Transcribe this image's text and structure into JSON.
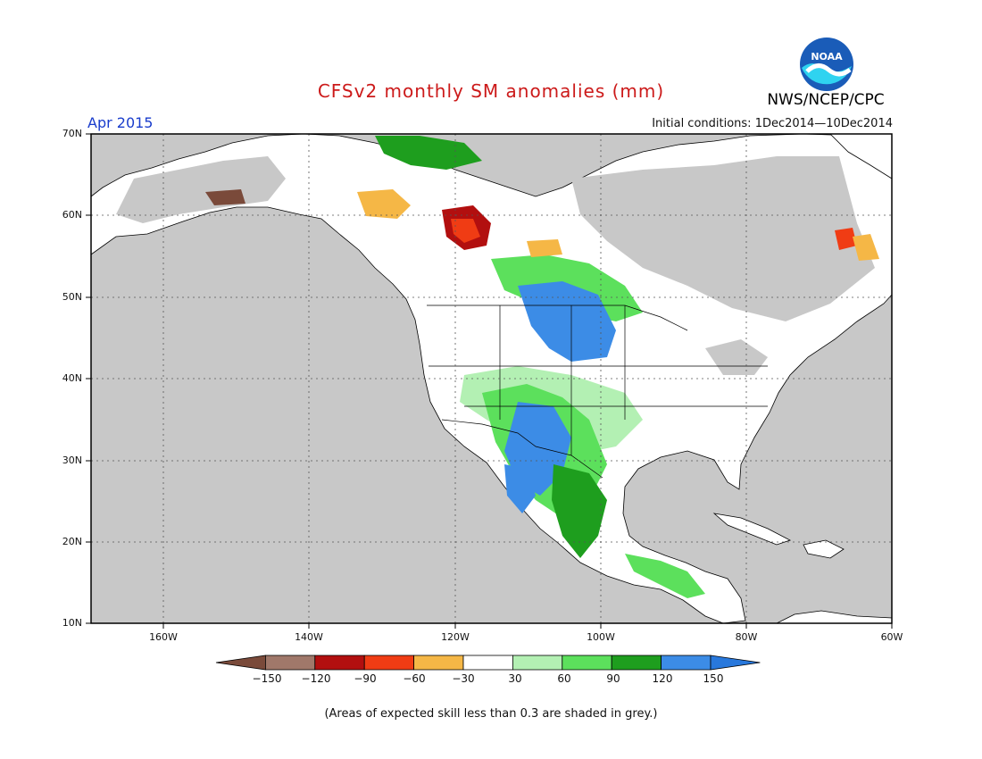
{
  "title": "CFSv2 monthly SM anomalies (mm)",
  "organization": "NWS/NCEP/CPC",
  "logo_text": "NOAA",
  "valid_month": "Apr 2015",
  "initial_conditions": "Initial conditions: 1Dec2014—10Dec2014",
  "footnote": "(Areas of expected skill less than 0.3 are shaded in grey.)",
  "colors": {
    "grey_mask": "#c8c8c8",
    "land_white": "#ffffff",
    "bins": [
      "#7a4a3a",
      "#a0786a",
      "#b20f0f",
      "#f03c14",
      "#f5b746",
      "#ffffff",
      "#b3f0b3",
      "#5ce05c",
      "#1e9e1e",
      "#3c8ce6",
      "#2878dc"
    ]
  },
  "axes": {
    "y_labels": [
      "70N",
      "60N",
      "50N",
      "40N",
      "30N",
      "20N",
      "10N"
    ],
    "x_labels": [
      "160W",
      "140W",
      "120W",
      "100W",
      "80W",
      "60W"
    ]
  },
  "colorbar": {
    "labels": [
      "−150",
      "−120",
      "−90",
      "−60",
      "−30",
      "30",
      "60",
      "90",
      "120",
      "150"
    ],
    "bins": [
      "< -150",
      "-150 to -120",
      "-120 to -90",
      "-90 to -60",
      "-60 to -30",
      "-30 to 30",
      "30 to 60",
      "60 to 90",
      "90 to 120",
      "120 to 150",
      "> 150"
    ]
  },
  "map_data": {
    "extent": {
      "lon_min": -170,
      "lon_max": -60,
      "lat_min": 10,
      "lat_max": 70
    },
    "anomaly_regions": [
      {
        "region": "Northern Plains / Dakotas",
        "category": "120 to 150"
      },
      {
        "region": "Southern Rockies / New Mexico",
        "category": "120 to 150"
      },
      {
        "region": "Western Mexico / Sierra Madre",
        "category": "120 to 150"
      },
      {
        "region": "Central Plains",
        "category": "60 to 90"
      },
      {
        "region": "Central Mexico",
        "category": "60 to 90"
      },
      {
        "region": "Canadian Prairies",
        "category": "60 to 90"
      },
      {
        "region": "Northern Alberta",
        "category": "-120 to -90"
      },
      {
        "region": "Northern British Columbia",
        "category": "-60 to -30"
      },
      {
        "region": "Labrador",
        "category": "-90 to -60"
      },
      {
        "region": "Northern Alaska / Yukon",
        "category": "90 to 120"
      },
      {
        "region": "Eastern United States",
        "category": "-30 to 30"
      },
      {
        "region": "Great Basin",
        "category": "-30 to 30"
      }
    ]
  }
}
